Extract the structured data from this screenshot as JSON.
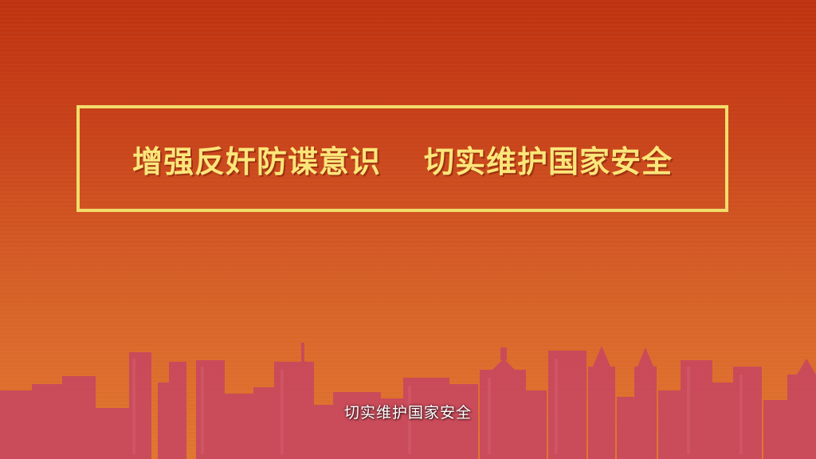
{
  "banner": {
    "line_left": "增强反奸防谍意识",
    "line_right": "切实维护国家安全"
  },
  "subtitle": "切实维护国家安全",
  "colors": {
    "background_top": "#bf320f",
    "background_bottom": "#e0762f",
    "frame_gold": "#f3dc6a",
    "title_gold": "#fbe67a",
    "skyline": "#c9485e"
  }
}
